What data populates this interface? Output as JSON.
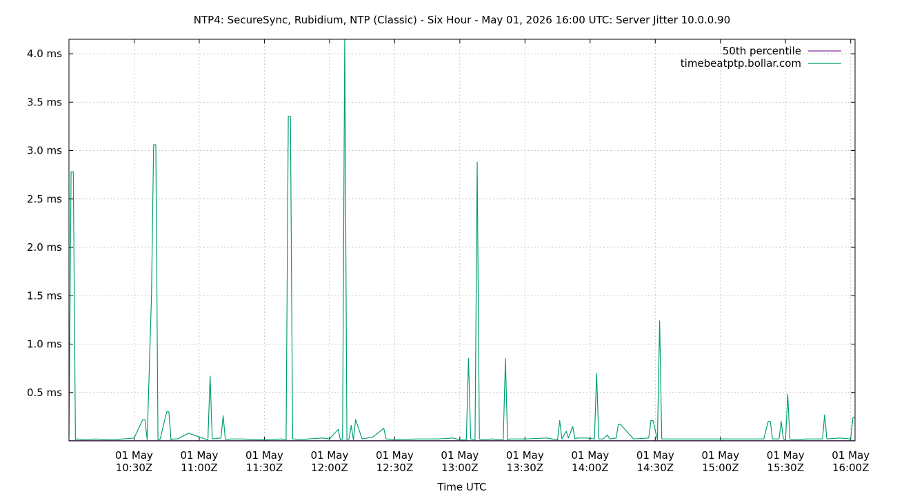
{
  "chart_data": {
    "type": "line",
    "title": "NTP4: SecureSync, Rubidium, NTP (Classic) - Six Hour - May 01, 2026 16:00 UTC: Server Jitter 10.0.0.90",
    "xlabel": "Time UTC",
    "ylabel": "",
    "grid": true,
    "legend_position": "top-right",
    "x_range": [
      "2026-05-01 10:00",
      "2026-05-01 16:02"
    ],
    "ylim": [
      0,
      4.15
    ],
    "y_ticks": [
      {
        "value": 0.5,
        "label": "0.5 ms"
      },
      {
        "value": 1.0,
        "label": "1.0 ms"
      },
      {
        "value": 1.5,
        "label": "1.5 ms"
      },
      {
        "value": 2.0,
        "label": "2.0 ms"
      },
      {
        "value": 2.5,
        "label": "2.5 ms"
      },
      {
        "value": 3.0,
        "label": "3.0 ms"
      },
      {
        "value": 3.5,
        "label": "3.5 ms"
      },
      {
        "value": 4.0,
        "label": "4.0 ms"
      }
    ],
    "x_ticks": [
      {
        "value": "10:30",
        "line1": "01 May",
        "line2": "10:30Z"
      },
      {
        "value": "11:00",
        "line1": "01 May",
        "line2": "11:00Z"
      },
      {
        "value": "11:30",
        "line1": "01 May",
        "line2": "11:30Z"
      },
      {
        "value": "12:00",
        "line1": "01 May",
        "line2": "12:00Z"
      },
      {
        "value": "12:30",
        "line1": "01 May",
        "line2": "12:30Z"
      },
      {
        "value": "13:00",
        "line1": "01 May",
        "line2": "13:00Z"
      },
      {
        "value": "13:30",
        "line1": "01 May",
        "line2": "13:30Z"
      },
      {
        "value": "14:00",
        "line1": "01 May",
        "line2": "14:00Z"
      },
      {
        "value": "14:30",
        "line1": "01 May",
        "line2": "14:30Z"
      },
      {
        "value": "15:00",
        "line1": "01 May",
        "line2": "15:00Z"
      },
      {
        "value": "15:30",
        "line1": "01 May",
        "line2": "15:30Z"
      },
      {
        "value": "16:00",
        "line1": "01 May",
        "line2": "16:00Z"
      }
    ],
    "series": [
      {
        "name": "50th percentile",
        "color": "#8b2fa0",
        "x": [
          "10:00",
          "16:02"
        ],
        "values": [
          0.002,
          0.002
        ]
      },
      {
        "name": "timebeatptp.bollar.com",
        "color": "#009e73",
        "x": [
          "10:00",
          "10:01",
          "10:02",
          "10:03",
          "10:04",
          "10:08",
          "10:12",
          "10:20",
          "10:25",
          "10:30",
          "10:34",
          "10:35",
          "10:36",
          "10:38",
          "10:39",
          "10:40",
          "10:41",
          "10:42",
          "10:45",
          "10:46",
          "10:47",
          "10:48",
          "10:50",
          "10:55",
          "11:04",
          "11:05",
          "11:06",
          "11:10",
          "11:11",
          "11:12",
          "11:13",
          "11:14",
          "11:20",
          "11:30",
          "11:38",
          "11:40",
          "11:41",
          "11:42",
          "11:43",
          "11:44",
          "11:46",
          "11:50",
          "11:57",
          "12:00",
          "12:04",
          "12:05",
          "12:06",
          "12:07",
          "12:08",
          "12:09",
          "12:10",
          "12:11",
          "12:12",
          "12:15",
          "12:20",
          "12:25",
          "12:26",
          "12:27",
          "12:30",
          "12:40",
          "12:50",
          "12:57",
          "13:00",
          "13:03",
          "13:04",
          "13:05",
          "13:07",
          "13:08",
          "13:09",
          "13:10",
          "13:15",
          "13:20",
          "13:21",
          "13:22",
          "13:23",
          "13:30",
          "13:40",
          "13:45",
          "13:46",
          "13:47",
          "13:49",
          "13:50",
          "13:52",
          "13:53",
          "13:54",
          "13:58",
          "14:02",
          "14:03",
          "14:04",
          "14:06",
          "14:08",
          "14:09",
          "14:12",
          "14:13",
          "14:14",
          "14:20",
          "14:27",
          "14:28",
          "14:29",
          "14:31",
          "14:32",
          "14:33",
          "14:40",
          "14:50",
          "15:00",
          "15:10",
          "15:20",
          "15:22",
          "15:23",
          "15:24",
          "15:27",
          "15:28",
          "15:29",
          "15:30",
          "15:31",
          "15:32",
          "15:34",
          "15:40",
          "15:47",
          "15:48",
          "15:49",
          "15:55",
          "16:00",
          "16:01",
          "16:02"
        ],
        "values": [
          0.03,
          2.78,
          2.78,
          0.01,
          0.02,
          0.01,
          0.02,
          0.01,
          0.02,
          0.03,
          0.22,
          0.22,
          0.01,
          1.5,
          3.06,
          3.06,
          0.01,
          0.02,
          0.3,
          0.3,
          0.01,
          0.02,
          0.02,
          0.08,
          0.01,
          0.67,
          0.02,
          0.03,
          0.26,
          0.02,
          0.01,
          0.02,
          0.02,
          0.01,
          0.02,
          0.01,
          3.35,
          3.35,
          0.02,
          0.02,
          0.01,
          0.02,
          0.03,
          0.02,
          0.12,
          0.01,
          0.02,
          4.15,
          0.01,
          0.02,
          0.16,
          0.01,
          0.22,
          0.02,
          0.04,
          0.13,
          0.02,
          0.02,
          0.01,
          0.02,
          0.02,
          0.03,
          0.01,
          0.01,
          0.85,
          0.02,
          0.01,
          2.88,
          0.02,
          0.01,
          0.02,
          0.01,
          0.85,
          0.01,
          0.02,
          0.02,
          0.03,
          0.01,
          0.21,
          0.02,
          0.1,
          0.03,
          0.15,
          0.02,
          0.03,
          0.03,
          0.02,
          0.7,
          0.02,
          0.02,
          0.06,
          0.02,
          0.03,
          0.17,
          0.17,
          0.02,
          0.03,
          0.21,
          0.21,
          0.01,
          1.24,
          0.02,
          0.02,
          0.02,
          0.02,
          0.02,
          0.02,
          0.2,
          0.2,
          0.02,
          0.02,
          0.2,
          0.02,
          0.01,
          0.48,
          0.02,
          0.01,
          0.02,
          0.02,
          0.27,
          0.02,
          0.03,
          0.02,
          0.24,
          0.24
        ]
      }
    ]
  }
}
